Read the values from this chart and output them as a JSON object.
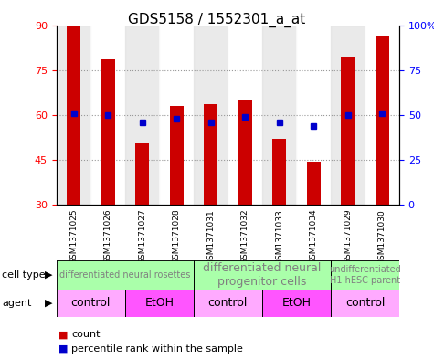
{
  "title": "GDS5158 / 1552301_a_at",
  "samples": [
    "GSM1371025",
    "GSM1371026",
    "GSM1371027",
    "GSM1371028",
    "GSM1371031",
    "GSM1371032",
    "GSM1371033",
    "GSM1371034",
    "GSM1371029",
    "GSM1371030"
  ],
  "counts": [
    89.5,
    78.5,
    50.5,
    63.0,
    63.5,
    65.0,
    52.0,
    44.5,
    79.5,
    86.5
  ],
  "percentiles": [
    51,
    50,
    46,
    48,
    46,
    49,
    46,
    44,
    50,
    51
  ],
  "ylim_left": [
    30,
    90
  ],
  "ylim_right": [
    0,
    100
  ],
  "yticks_left": [
    30,
    45,
    60,
    75,
    90
  ],
  "yticks_right": [
    0,
    25,
    50,
    75,
    100
  ],
  "ytick_labels_right": [
    "0",
    "25",
    "50",
    "75",
    "100%"
  ],
  "bar_color": "#cc0000",
  "dot_color": "#0000cc",
  "grid_color": "#999999",
  "bar_bottom": 30,
  "cell_type_groups": [
    {
      "label": "differentiated neural rosettes",
      "start": 0,
      "end": 4,
      "fontsize": 7
    },
    {
      "label": "differentiated neural\nprogenitor cells",
      "start": 4,
      "end": 8,
      "fontsize": 9
    },
    {
      "label": "undifferentiated\nH1 hESC parent",
      "start": 8,
      "end": 10,
      "fontsize": 7
    }
  ],
  "agent_groups": [
    {
      "label": "control",
      "start": 0,
      "end": 2
    },
    {
      "label": "EtOH",
      "start": 2,
      "end": 4
    },
    {
      "label": "control",
      "start": 4,
      "end": 6
    },
    {
      "label": "EtOH",
      "start": 6,
      "end": 8
    },
    {
      "label": "control",
      "start": 8,
      "end": 10
    }
  ],
  "cell_type_color": "#aaffaa",
  "agent_control_color": "#ffaaff",
  "agent_etoh_color": "#ff55ff",
  "xlabel_row_color": "#cccccc",
  "legend_count_color": "#cc0000",
  "legend_dot_color": "#0000cc"
}
